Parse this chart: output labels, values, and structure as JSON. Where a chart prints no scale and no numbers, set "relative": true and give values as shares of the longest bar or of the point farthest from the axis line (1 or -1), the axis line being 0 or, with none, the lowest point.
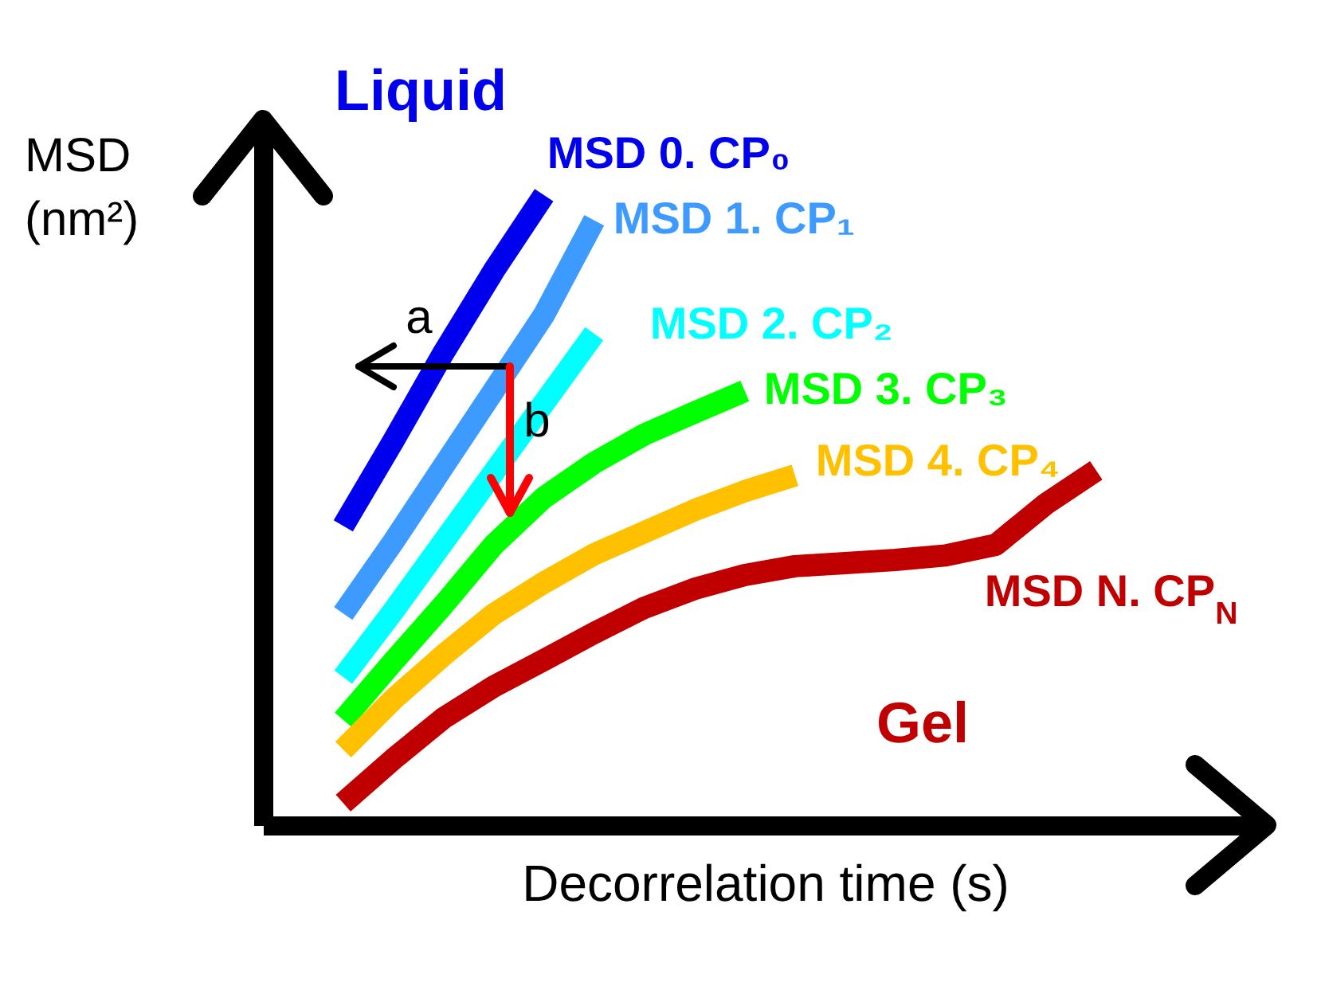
{
  "chart_data": {
    "type": "line",
    "relative": true,
    "xlabel": "Decorrelation time (s)",
    "ylabel": "MSD (nm²)",
    "categories": [
      null,
      null,
      null,
      null,
      null,
      null,
      null,
      null,
      null,
      null,
      null,
      null,
      null,
      null,
      null,
      null
    ],
    "tick_labels": false,
    "legend": false,
    "marker": "none",
    "line_style": "solid",
    "annotations": [
      "Liquid",
      "Gel",
      "a",
      "b"
    ],
    "series": [
      {
        "name": "MSD 0. CP₀",
        "color": "#0000ee",
        "values": [
          0.475,
          0.61,
          0.75,
          0.88,
          1.0,
          null,
          null,
          null,
          null,
          null,
          null,
          null,
          null,
          null,
          null,
          null
        ]
      },
      {
        "name": "MSD 1. CP₁",
        "color": "#3d9bff",
        "values": [
          0.336,
          0.45,
          0.57,
          0.69,
          0.81,
          0.96,
          null,
          null,
          null,
          null,
          null,
          null,
          null,
          null,
          null,
          null
        ]
      },
      {
        "name": "MSD 2. CP₂",
        "color": "#00ffff",
        "values": [
          0.235,
          0.34,
          0.45,
          0.56,
          0.67,
          0.78,
          null,
          null,
          null,
          null,
          null,
          null,
          null,
          null,
          null,
          null
        ]
      },
      {
        "name": "MSD 3. CP₃",
        "color": "#00ff00",
        "values": [
          0.167,
          0.26,
          0.35,
          0.445,
          0.52,
          0.575,
          0.62,
          0.655,
          0.689,
          null,
          null,
          null,
          null,
          null,
          null,
          null
        ]
      },
      {
        "name": "MSD 4. CP₄",
        "color": "#ffc000",
        "values": [
          0.12,
          0.2,
          0.27,
          0.335,
          0.385,
          0.43,
          0.465,
          0.5,
          0.53,
          0.555,
          null,
          null,
          null,
          null,
          null,
          null
        ]
      },
      {
        "name": "MSD N. CP$_{N}$",
        "color": "#c00000",
        "values": [
          0.035,
          0.105,
          0.17,
          0.22,
          0.262,
          0.305,
          0.345,
          0.375,
          0.397,
          0.411,
          0.416,
          0.421,
          0.428,
          0.445,
          0.51,
          0.563
        ]
      }
    ]
  }
}
